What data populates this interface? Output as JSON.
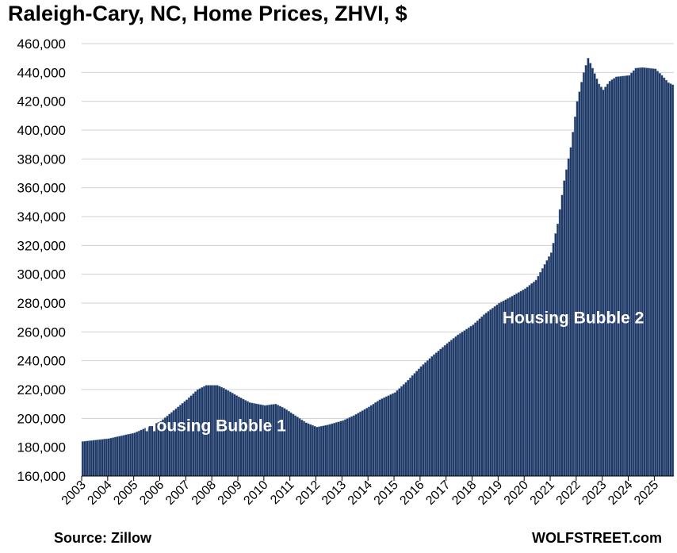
{
  "chart_data": {
    "type": "bar",
    "title": "Raleigh-Cary, NC, Home Prices, ZHVI, $",
    "source": "Source: Zillow",
    "watermark": "WOLFSTREET.com",
    "bar_color": "#1f3864",
    "bar_edge_color": "#8ea6c8",
    "ylim": [
      160000,
      460000
    ],
    "yticks": [
      "160,000",
      "180,000",
      "200,000",
      "220,000",
      "240,000",
      "260,000",
      "280,000",
      "300,000",
      "320,000",
      "340,000",
      "360,000",
      "380,000",
      "400,000",
      "420,000",
      "440,000",
      "460,000"
    ],
    "xticks": [
      "2003",
      "2004",
      "2005",
      "2006",
      "2007",
      "2008",
      "2009",
      "2010",
      "2011",
      "2012",
      "2013",
      "2014",
      "2015",
      "2016",
      "2017",
      "2018",
      "2019",
      "2020",
      "2021",
      "2022",
      "2023",
      "2024",
      "2025"
    ],
    "grid": true,
    "frequency": "monthly",
    "x_start": "2003-01",
    "x_end": "2025-09",
    "anchors": [
      [
        "2003-01",
        184000
      ],
      [
        "2004-01",
        186000
      ],
      [
        "2005-01",
        190000
      ],
      [
        "2006-01",
        198000
      ],
      [
        "2007-01",
        213000
      ],
      [
        "2007-06",
        220000
      ],
      [
        "2007-10",
        223000
      ],
      [
        "2008-03",
        223000
      ],
      [
        "2008-06",
        221000
      ],
      [
        "2009-01",
        215000
      ],
      [
        "2009-06",
        211000
      ],
      [
        "2010-01",
        209000
      ],
      [
        "2010-06",
        210000
      ],
      [
        "2010-10",
        207000
      ],
      [
        "2011-03",
        202000
      ],
      [
        "2011-08",
        197000
      ],
      [
        "2012-01",
        194000
      ],
      [
        "2012-06",
        195500
      ],
      [
        "2013-01",
        198500
      ],
      [
        "2013-06",
        202000
      ],
      [
        "2014-01",
        208000
      ],
      [
        "2014-06",
        213000
      ],
      [
        "2015-01",
        218000
      ],
      [
        "2015-06",
        225000
      ],
      [
        "2016-01",
        236000
      ],
      [
        "2016-06",
        243000
      ],
      [
        "2017-01",
        252000
      ],
      [
        "2017-06",
        258000
      ],
      [
        "2018-01",
        265000
      ],
      [
        "2018-06",
        272000
      ],
      [
        "2019-01",
        280000
      ],
      [
        "2019-06",
        284000
      ],
      [
        "2020-01",
        290000
      ],
      [
        "2020-06",
        296000
      ],
      [
        "2021-01",
        315000
      ],
      [
        "2021-04",
        335000
      ],
      [
        "2021-07",
        365000
      ],
      [
        "2021-10",
        388000
      ],
      [
        "2022-01",
        420000
      ],
      [
        "2022-04",
        440000
      ],
      [
        "2022-06",
        450000
      ],
      [
        "2022-08",
        443000
      ],
      [
        "2022-11",
        432000
      ],
      [
        "2023-01",
        428000
      ],
      [
        "2023-04",
        434000
      ],
      [
        "2023-07",
        437000
      ],
      [
        "2024-01",
        438000
      ],
      [
        "2024-04",
        443000
      ],
      [
        "2024-07",
        443500
      ],
      [
        "2025-01",
        442500
      ],
      [
        "2025-04",
        438000
      ],
      [
        "2025-07",
        433000
      ],
      [
        "2025-09",
        431500
      ]
    ],
    "annotations": [
      {
        "text": "Housing Bubble 1",
        "date": "2005-06",
        "value": 191000
      },
      {
        "text": "Housing Bubble 2",
        "date": "2019-03",
        "value": 266000
      }
    ]
  }
}
